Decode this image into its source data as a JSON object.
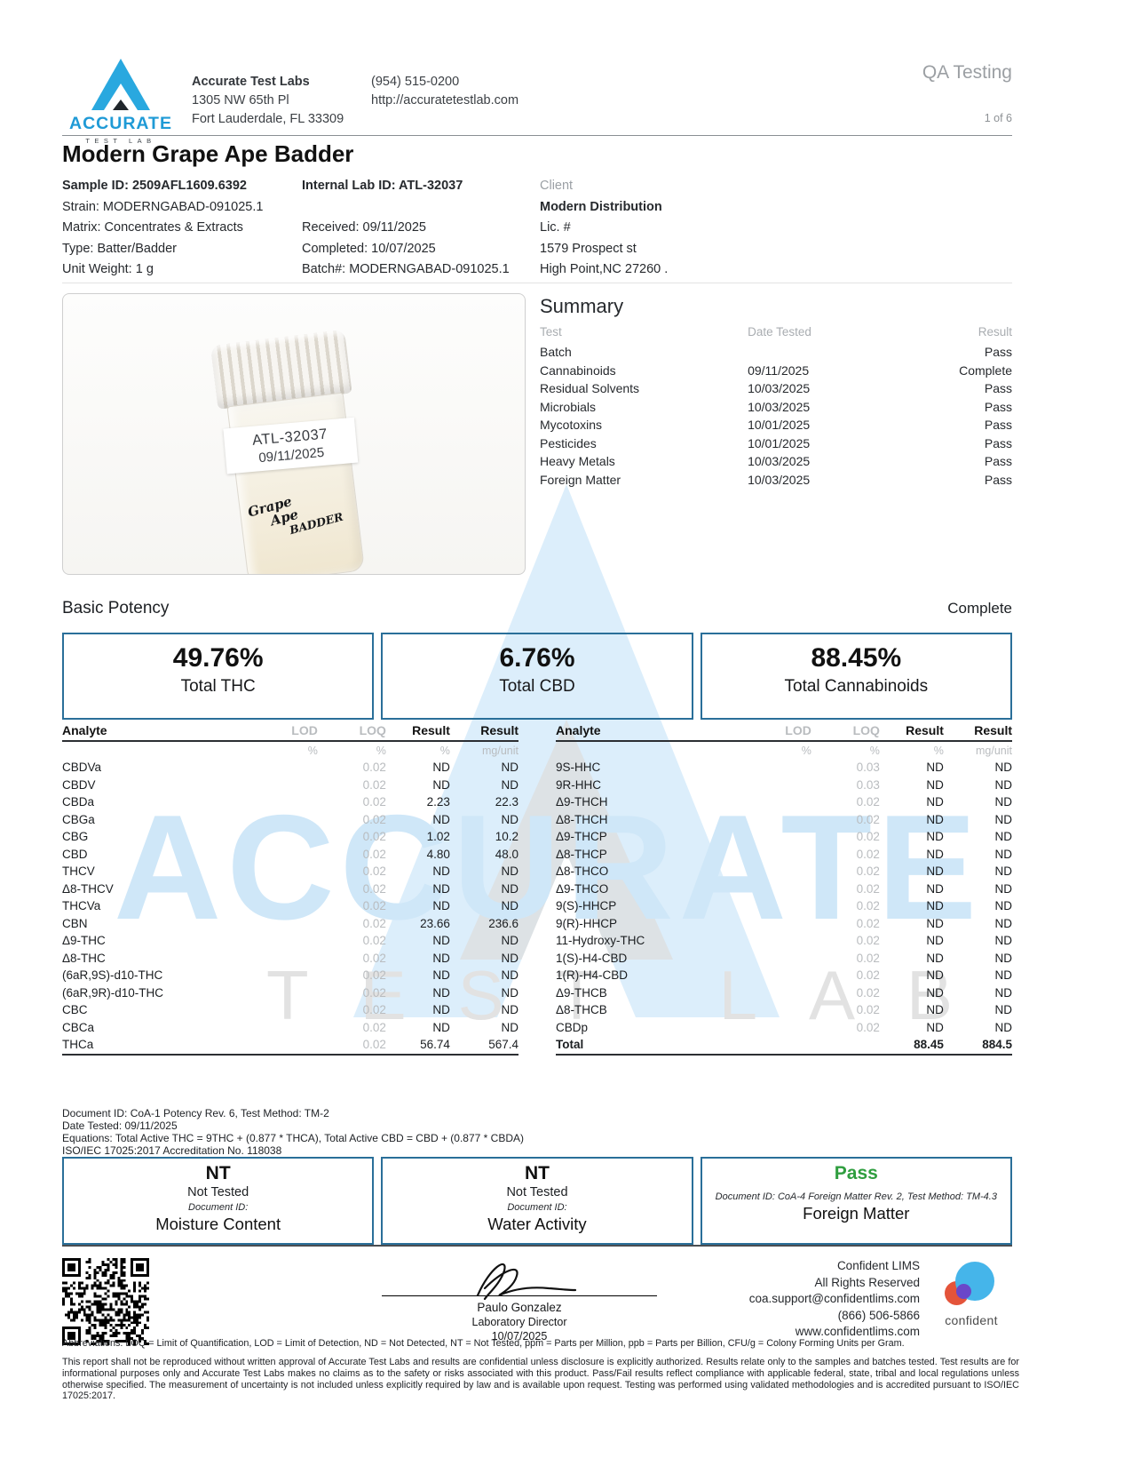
{
  "colors": {
    "accent_blue": "#2a6f99",
    "logo_blue": "#29a8df",
    "pass_green": "#2f9e3f",
    "watermark_blue": "#dceefb"
  },
  "header": {
    "logo_word": "ACCURATE",
    "logo_sub": "TEST LAB",
    "lab_name": "Accurate Test Labs",
    "address_line1": "1305 NW 65th Pl",
    "address_line2": "Fort Lauderdale, FL 33309",
    "phone": "(954) 515-0200",
    "website": "http://accuratetestlab.com",
    "qa_label": "QA Testing",
    "page_info": "1 of 6"
  },
  "sample": {
    "title": "Modern Grape Ape Badder",
    "sample_id": "Sample ID: 2509AFL1609.6392",
    "strain": "Strain: MODERNGABAD-091025.1",
    "matrix": "Matrix: Concentrates & Extracts",
    "type": "Type: Batter/Badder",
    "unit_weight": "Unit Weight: 1 g",
    "internal_lab_id": "Internal Lab ID: ATL-32037",
    "received": "Received: 09/11/2025",
    "completed": "Completed: 10/07/2025",
    "batch": "Batch#: MODERNGABAD-091025.1",
    "client_label": "Client",
    "client_name": "Modern Distribution",
    "client_lic": "Lic. #",
    "client_addr1": "1579 Prospect st",
    "client_addr2": "High Point,NC 27260 ."
  },
  "photo": {
    "label_line1": "ATL-32037",
    "label_line2": "09/11/2025",
    "hand1": "Grape",
    "hand2": "Ape",
    "hand3": "BADDER"
  },
  "summary": {
    "title": "Summary",
    "headers": {
      "test": "Test",
      "date": "Date Tested",
      "result": "Result"
    },
    "rows": [
      {
        "test": "Batch",
        "date": "",
        "result": "Pass",
        "status": "pass"
      },
      {
        "test": "Cannabinoids",
        "date": "09/11/2025",
        "result": "Complete",
        "status": "complete"
      },
      {
        "test": "Residual Solvents",
        "date": "10/03/2025",
        "result": "Pass",
        "status": "pass"
      },
      {
        "test": "Microbials",
        "date": "10/03/2025",
        "result": "Pass",
        "status": "pass"
      },
      {
        "test": "Mycotoxins",
        "date": "10/01/2025",
        "result": "Pass",
        "status": "pass"
      },
      {
        "test": "Pesticides",
        "date": "10/01/2025",
        "result": "Pass",
        "status": "pass"
      },
      {
        "test": "Heavy Metals",
        "date": "10/03/2025",
        "result": "Pass",
        "status": "pass"
      },
      {
        "test": "Foreign Matter",
        "date": "10/03/2025",
        "result": "Pass",
        "status": "pass"
      }
    ]
  },
  "potency": {
    "section_title": "Basic Potency",
    "section_status": "Complete",
    "cards": [
      {
        "value": "49.76%",
        "label": "Total THC"
      },
      {
        "value": "6.76%",
        "label": "Total CBD"
      },
      {
        "value": "88.45%",
        "label": "Total Cannabinoids"
      }
    ],
    "headers": {
      "analyte": "Analyte",
      "lod": "LOD",
      "loq": "LOQ",
      "result_pct": "Result",
      "result_mg": "Result"
    },
    "units": {
      "lod": "%",
      "loq": "%",
      "result_pct": "%",
      "result_mg": "mg/unit"
    },
    "left_rows": [
      [
        "CBDVa",
        "",
        "0.02",
        "ND",
        "ND"
      ],
      [
        "CBDV",
        "",
        "0.02",
        "ND",
        "ND"
      ],
      [
        "CBDa",
        "",
        "0.02",
        "2.23",
        "22.3"
      ],
      [
        "CBGa",
        "",
        "0.02",
        "ND",
        "ND"
      ],
      [
        "CBG",
        "",
        "0.02",
        "1.02",
        "10.2"
      ],
      [
        "CBD",
        "",
        "0.02",
        "4.80",
        "48.0"
      ],
      [
        "THCV",
        "",
        "0.02",
        "ND",
        "ND"
      ],
      [
        "Δ8-THCV",
        "",
        "0.02",
        "ND",
        "ND"
      ],
      [
        "THCVa",
        "",
        "0.02",
        "ND",
        "ND"
      ],
      [
        "CBN",
        "",
        "0.02",
        "23.66",
        "236.6"
      ],
      [
        "Δ9-THC",
        "",
        "0.02",
        "ND",
        "ND"
      ],
      [
        "Δ8-THC",
        "",
        "0.02",
        "ND",
        "ND"
      ],
      [
        "(6aR,9S)-d10-THC",
        "",
        "0.02",
        "ND",
        "ND"
      ],
      [
        "(6aR,9R)-d10-THC",
        "",
        "0.02",
        "ND",
        "ND"
      ],
      [
        "CBC",
        "",
        "0.02",
        "ND",
        "ND"
      ],
      [
        "CBCa",
        "",
        "0.02",
        "ND",
        "ND"
      ],
      [
        "THCa",
        "",
        "0.02",
        "56.74",
        "567.4"
      ]
    ],
    "right_rows": [
      [
        "9S-HHC",
        "",
        "0.03",
        "ND",
        "ND"
      ],
      [
        "9R-HHC",
        "",
        "0.03",
        "ND",
        "ND"
      ],
      [
        "Δ9-THCH",
        "",
        "0.02",
        "ND",
        "ND"
      ],
      [
        "Δ8-THCH",
        "",
        "0.02",
        "ND",
        "ND"
      ],
      [
        "Δ9-THCP",
        "",
        "0.02",
        "ND",
        "ND"
      ],
      [
        "Δ8-THCP",
        "",
        "0.02",
        "ND",
        "ND"
      ],
      [
        "Δ8-THCO",
        "",
        "0.02",
        "ND",
        "ND"
      ],
      [
        "Δ9-THCO",
        "",
        "0.02",
        "ND",
        "ND"
      ],
      [
        "9(S)-HHCP",
        "",
        "0.02",
        "ND",
        "ND"
      ],
      [
        "9(R)-HHCP",
        "",
        "0.02",
        "ND",
        "ND"
      ],
      [
        "11-Hydroxy-THC",
        "",
        "0.02",
        "ND",
        "ND"
      ],
      [
        "1(S)-H4-CBD",
        "",
        "0.02",
        "ND",
        "ND"
      ],
      [
        "1(R)-H4-CBD",
        "",
        "0.02",
        "ND",
        "ND"
      ],
      [
        "Δ9-THCB",
        "",
        "0.02",
        "ND",
        "ND"
      ],
      [
        "Δ8-THCB",
        "",
        "0.02",
        "ND",
        "ND"
      ],
      [
        "CBDp",
        "",
        "0.02",
        "ND",
        "ND"
      ],
      [
        "Total",
        "",
        "",
        "88.45",
        "884.5"
      ]
    ]
  },
  "method": {
    "line1": "Document ID: CoA-1 Potency Rev. 6, Test Method: TM-2",
    "line2": "Date Tested: 09/11/2025",
    "line3": "Equations: Total Active THC = 9THC + (0.877 * THCA), Total Active CBD = CBD + (0.877 * CBDA)",
    "line4": "ISO/IEC 17025:2017 Accreditation No. 118038"
  },
  "bottom_boxes": [
    {
      "value": "NT",
      "subtitle": "Not Tested",
      "doc": "Document ID:",
      "label": "Moisture Content"
    },
    {
      "value": "NT",
      "subtitle": "Not Tested",
      "doc": "Document ID:",
      "label": "Water Activity"
    },
    {
      "value": "Pass",
      "subtitle": "",
      "doc": "Document ID: CoA-4 Foreign Matter Rev. 2, Test Method: TM-4.3",
      "label": "Foreign Matter"
    }
  ],
  "footer": {
    "signer_name": "Paulo Gonzalez",
    "signer_title": "Laboratory Director",
    "sign_date": "10/07/2025",
    "lims_line1": "Confident LIMS",
    "lims_line2": "All Rights Reserved",
    "lims_line3": "coa.support@confidentlims.com",
    "lims_line4": "(866) 506-5866",
    "lims_line5": "www.confidentlims.com",
    "lims_logo_word": "confident",
    "abbreviations": "Abbreviations: LOQ = Limit of Quantification, LOD = Limit of Detection, ND = Not Detected, NT = Not Tested, ppm = Parts per Million, ppb = Parts per Billion, CFU/g = Colony Forming Units per Gram.",
    "disclaimer": "This report shall not be reproduced without written approval of Accurate Test Labs and results are confidential unless disclosure is explicitly authorized. Results relate only to the samples and batches tested. Test results are for informational purposes only and Accurate Test Labs makes no claims as to the safety or risks associated with this product. Pass/Fail results reflect compliance with applicable federal, state, tribal and local regulations unless otherwise specified. The measurement of uncertainty is not included unless explicitly required by law and is available upon request. Testing was performed using validated methodologies and is accredited pursuant to ISO/IEC 17025:2017."
  },
  "watermark": {
    "word": "ACCURATE",
    "sub": "TEST LAB"
  }
}
